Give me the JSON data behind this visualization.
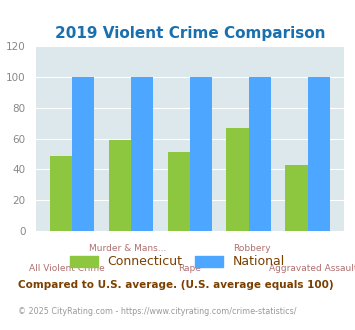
{
  "title": "2019 Violent Crime Comparison",
  "title_color": "#1a6faf",
  "categories": [
    "All Violent Crime",
    "Murder & Mans...",
    "Rape",
    "Robbery",
    "Aggravated Assault"
  ],
  "x_labels_top": [
    "",
    "Murder & Mans...",
    "",
    "Robbery",
    ""
  ],
  "x_labels_bottom": [
    "All Violent Crime",
    "",
    "Rape",
    "",
    "Aggravated Assault"
  ],
  "connecticut_values": [
    49,
    59,
    51,
    67,
    43
  ],
  "national_values": [
    100,
    100,
    100,
    100,
    100
  ],
  "connecticut_color": "#8dc63f",
  "national_color": "#4da6ff",
  "fig_bg_color": "#ffffff",
  "plot_bg_color": "#dde8ed",
  "ylim": [
    0,
    120
  ],
  "yticks": [
    0,
    20,
    40,
    60,
    80,
    100,
    120
  ],
  "legend_labels": [
    "Connecticut",
    "National"
  ],
  "footnote1": "Compared to U.S. average. (U.S. average equals 100)",
  "footnote2": "© 2025 CityRating.com - https://www.cityrating.com/crime-statistics/",
  "footnote1_color": "#7b3f00",
  "footnote2_color": "#999999",
  "xlabel_color": "#b07070",
  "ytick_color": "#888888"
}
